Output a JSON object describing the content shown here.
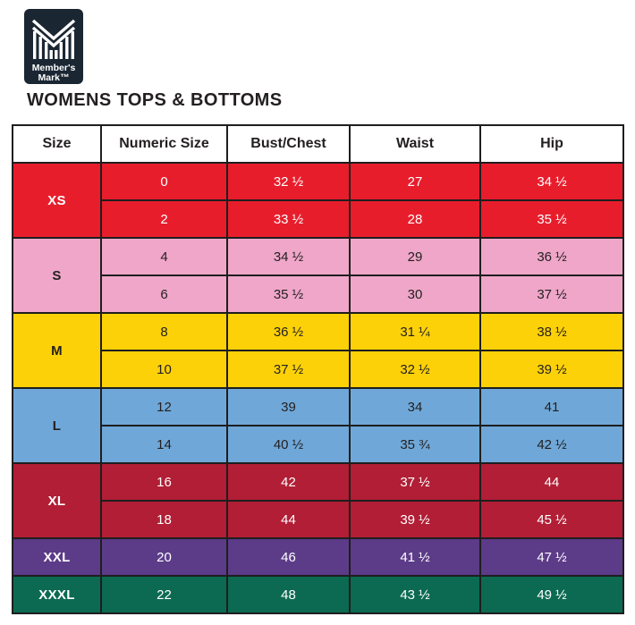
{
  "logo": {
    "line1": "Member's",
    "line2": "Mark™",
    "bg_color": "#1B2633"
  },
  "page_title": "WOMENS TOPS & BOTTOMS",
  "size_chart": {
    "columns": [
      "Size",
      "Numeric Size",
      "Bust/Chest",
      "Waist",
      "Hip"
    ],
    "border_color": "#1E1E1E",
    "groups": [
      {
        "size": "XS",
        "bg": "#E81D2C",
        "fg": "#FFFFFF",
        "rows": [
          [
            "0",
            "32 ½",
            "27",
            "34 ½"
          ],
          [
            "2",
            "33 ½",
            "28",
            "35 ½"
          ]
        ]
      },
      {
        "size": "S",
        "bg": "#EFA6C9",
        "fg": "#231F20",
        "rows": [
          [
            "4",
            "34 ½",
            "29",
            "36 ½"
          ],
          [
            "6",
            "35 ½",
            "30",
            "37 ½"
          ]
        ]
      },
      {
        "size": "M",
        "bg": "#FDD108",
        "fg": "#231F20",
        "rows": [
          [
            "8",
            "36 ½",
            "31 ¼",
            "38 ½"
          ],
          [
            "10",
            "37 ½",
            "32 ½",
            "39 ½"
          ]
        ]
      },
      {
        "size": "L",
        "bg": "#6FA8D8",
        "fg": "#231F20",
        "rows": [
          [
            "12",
            "39",
            "34",
            "41"
          ],
          [
            "14",
            "40 ½",
            "35 ¾",
            "42 ½"
          ]
        ]
      },
      {
        "size": "XL",
        "bg": "#B11E35",
        "fg": "#FFFFFF",
        "rows": [
          [
            "16",
            "42",
            "37 ½",
            "44"
          ],
          [
            "18",
            "44",
            "39 ½",
            "45 ½"
          ]
        ]
      },
      {
        "size": "XXL",
        "bg": "#5C3B88",
        "fg": "#FFFFFF",
        "rows": [
          [
            "20",
            "46",
            "41 ½",
            "47 ½"
          ]
        ]
      },
      {
        "size": "XXXL",
        "bg": "#0C6A52",
        "fg": "#FFFFFF",
        "rows": [
          [
            "22",
            "48",
            "43 ½",
            "49 ½"
          ]
        ]
      }
    ]
  },
  "chart_data": {
    "type": "table",
    "title": "WOMENS TOPS & BOTTOMS",
    "columns": [
      "Size",
      "Numeric Size",
      "Bust/Chest",
      "Waist",
      "Hip"
    ],
    "rows": [
      [
        "XS",
        "0",
        "32 ½",
        "27",
        "34 ½"
      ],
      [
        "XS",
        "2",
        "33 ½",
        "28",
        "35 ½"
      ],
      [
        "S",
        "4",
        "34 ½",
        "29",
        "36 ½"
      ],
      [
        "S",
        "6",
        "35 ½",
        "30",
        "37 ½"
      ],
      [
        "M",
        "8",
        "36 ½",
        "31 ¼",
        "38 ½"
      ],
      [
        "M",
        "10",
        "37 ½",
        "32 ½",
        "39 ½"
      ],
      [
        "L",
        "12",
        "39",
        "34",
        "41"
      ],
      [
        "L",
        "14",
        "40 ½",
        "35 ¾",
        "42 ½"
      ],
      [
        "XL",
        "16",
        "42",
        "37 ½",
        "44"
      ],
      [
        "XL",
        "18",
        "44",
        "39 ½",
        "45 ½"
      ],
      [
        "XXL",
        "20",
        "46",
        "41 ½",
        "47 ½"
      ],
      [
        "XXXL",
        "22",
        "48",
        "43 ½",
        "49 ½"
      ]
    ]
  }
}
